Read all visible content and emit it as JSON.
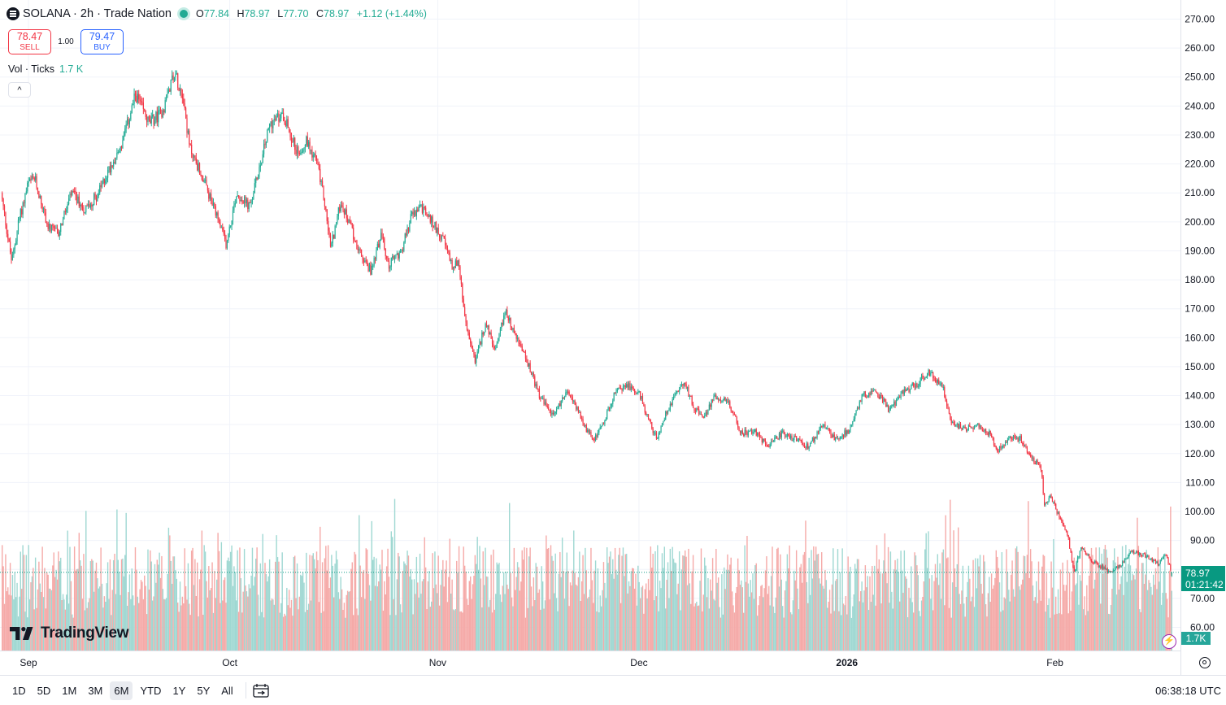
{
  "header": {
    "symbol": "SOLANA",
    "interval": "2h",
    "broker": "Trade Nation",
    "title": "SOLANA · 2h · Trade Nation",
    "ohlc": {
      "o_label": "O",
      "o": "77.84",
      "h_label": "H",
      "h": "78.97",
      "l_label": "L",
      "l": "77.70",
      "c_label": "C",
      "c": "78.97",
      "change": "+1.12 (+1.44%)"
    }
  },
  "trade": {
    "sell_price": "78.47",
    "sell_label": "SELL",
    "spread": "1.00",
    "buy_price": "79.47",
    "buy_label": "BUY"
  },
  "volume_legend": {
    "label": "Vol · Ticks",
    "value": "1.7 K"
  },
  "collapse_glyph": "^",
  "branding": {
    "logo_text": "TradingView"
  },
  "last_price": {
    "price": "78.97",
    "countdown": "01:21:42"
  },
  "volume_tag": "1.7K",
  "range_buttons": [
    "1D",
    "5D",
    "1M",
    "3M",
    "6M",
    "YTD",
    "1Y",
    "5Y",
    "All"
  ],
  "active_range": "6M",
  "clock": "06:38:18 UTC",
  "colors": {
    "up": "#22ab94",
    "down": "#f23645",
    "vol_up": "#9fd8d2",
    "vol_down": "#f5aaa8",
    "grid": "#f0f3fa",
    "last": "#089981"
  },
  "chart_data": {
    "type": "candlestick",
    "title": "SOLANA · 2h · Trade Nation",
    "y_axis": {
      "ylim": [
        55,
        273
      ],
      "ticks": [
        60,
        70,
        80,
        90,
        100,
        110,
        120,
        130,
        140,
        150,
        160,
        170,
        180,
        190,
        200,
        210,
        220,
        230,
        240,
        250,
        260,
        270
      ],
      "tick_labels": [
        "60.00",
        "70.00",
        "80.00",
        "90.00",
        "100.00",
        "110.00",
        "120.00",
        "130.00",
        "140.00",
        "150.00",
        "160.00",
        "170.00",
        "180.00",
        "190.00",
        "200.00",
        "210.00",
        "220.00",
        "230.00",
        "240.00",
        "250.00",
        "260.00",
        "270.00"
      ]
    },
    "x_axis": {
      "range_days": [
        0,
        174.5
      ],
      "ticks": [
        {
          "day": 4,
          "label": "Sep",
          "bold": false
        },
        {
          "day": 34,
          "label": "Oct",
          "bold": false
        },
        {
          "day": 65,
          "label": "Nov",
          "bold": false
        },
        {
          "day": 95,
          "label": "Dec",
          "bold": false
        },
        {
          "day": 126,
          "label": "2026",
          "bold": true
        },
        {
          "day": 157,
          "label": "Feb",
          "bold": false
        }
      ]
    },
    "price_path_anchors": [
      [
        0,
        210
      ],
      [
        1,
        195
      ],
      [
        1.6,
        186
      ],
      [
        2.6,
        200
      ],
      [
        4,
        213
      ],
      [
        5,
        215
      ],
      [
        7,
        198
      ],
      [
        8.5,
        196
      ],
      [
        10.5,
        210
      ],
      [
        12.5,
        204
      ],
      [
        14.5,
        210
      ],
      [
        16,
        218
      ],
      [
        18,
        227
      ],
      [
        20,
        244
      ],
      [
        22,
        234
      ],
      [
        24,
        238
      ],
      [
        25.7,
        252
      ],
      [
        27,
        244
      ],
      [
        28,
        226
      ],
      [
        30,
        215
      ],
      [
        32,
        202
      ],
      [
        33.5,
        192
      ],
      [
        35,
        210
      ],
      [
        37,
        205
      ],
      [
        38.5,
        220
      ],
      [
        40,
        234
      ],
      [
        42,
        237
      ],
      [
        44,
        224
      ],
      [
        45.5,
        228
      ],
      [
        47,
        220
      ],
      [
        48,
        208
      ],
      [
        49,
        191
      ],
      [
        50.5,
        207
      ],
      [
        52,
        198
      ],
      [
        53.5,
        188
      ],
      [
        55,
        183
      ],
      [
        56.5,
        196
      ],
      [
        57.5,
        185
      ],
      [
        59.5,
        190
      ],
      [
        61,
        202
      ],
      [
        62.5,
        205
      ],
      [
        64,
        200
      ],
      [
        65.5,
        195
      ],
      [
        67,
        185
      ],
      [
        68,
        186
      ],
      [
        69,
        165
      ],
      [
        70.5,
        152
      ],
      [
        72,
        165
      ],
      [
        73.5,
        155
      ],
      [
        75,
        170
      ],
      [
        76,
        163
      ],
      [
        78,
        153
      ],
      [
        80,
        140
      ],
      [
        82,
        133
      ],
      [
        84,
        141
      ],
      [
        85,
        139
      ],
      [
        86.5,
        130
      ],
      [
        88,
        125
      ],
      [
        89.5,
        130
      ],
      [
        91,
        140
      ],
      [
        93,
        144
      ],
      [
        95,
        140
      ],
      [
        96.5,
        130
      ],
      [
        97.5,
        125
      ],
      [
        98.5,
        132
      ],
      [
        100,
        140
      ],
      [
        101.5,
        145
      ],
      [
        103,
        136
      ],
      [
        104.5,
        132
      ],
      [
        106,
        140
      ],
      [
        108,
        138
      ],
      [
        110,
        127
      ],
      [
        112,
        128
      ],
      [
        114,
        122
      ],
      [
        116,
        127
      ],
      [
        118,
        125
      ],
      [
        120,
        122
      ],
      [
        122,
        130
      ],
      [
        124,
        125
      ],
      [
        126,
        128
      ],
      [
        128,
        140
      ],
      [
        130,
        142
      ],
      [
        132,
        135
      ],
      [
        134,
        141
      ],
      [
        136,
        144
      ],
      [
        138,
        148
      ],
      [
        140,
        143
      ],
      [
        141,
        132
      ],
      [
        143,
        128
      ],
      [
        145,
        130
      ],
      [
        147,
        127
      ],
      [
        148,
        121
      ],
      [
        150,
        126
      ],
      [
        151.5,
        125
      ],
      [
        153,
        119
      ],
      [
        154.5,
        115
      ],
      [
        154.7,
        113
      ],
      [
        155,
        103
      ],
      [
        156,
        105
      ],
      [
        157.5,
        97
      ],
      [
        158.5,
        92
      ],
      [
        159.5,
        79
      ],
      [
        160.5,
        88
      ],
      [
        162,
        83
      ],
      [
        163.5,
        81
      ],
      [
        165,
        79
      ],
      [
        166.5,
        82
      ],
      [
        168,
        86
      ],
      [
        170,
        85
      ],
      [
        172,
        82
      ],
      [
        173.2,
        85
      ],
      [
        174,
        78.97
      ]
    ],
    "last_candle": {
      "open": 77.84,
      "high": 78.97,
      "low": 77.7,
      "close": 78.97
    },
    "volume_series": {
      "label": "Vol · Ticks",
      "last_value": "1.7K",
      "note": "per-candle volume bars, green on up candles, red on down candles"
    }
  }
}
